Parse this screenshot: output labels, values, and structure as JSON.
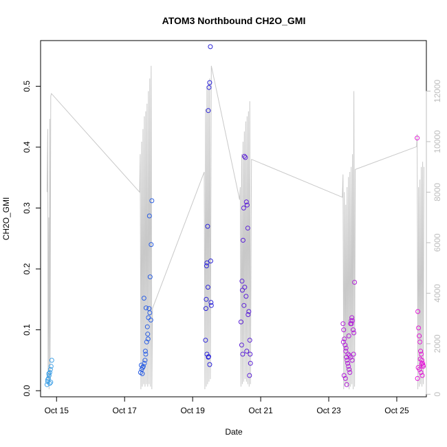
{
  "chart_data": {
    "type": "scatter",
    "title": "ATOM3 Northbound CH2O_GMI",
    "xlabel": "Date",
    "ylabel": "CH2O_GMI",
    "xlim": [
      14.53,
      25.87
    ],
    "ylim": [
      -0.01,
      0.575
    ],
    "y2lim": [
      -100,
      14000
    ],
    "x_ticks": [
      {
        "value": 15,
        "label": "Oct 15"
      },
      {
        "value": 17,
        "label": "Oct 17"
      },
      {
        "value": 19,
        "label": "Oct 19"
      },
      {
        "value": 21,
        "label": "Oct 21"
      },
      {
        "value": 23,
        "label": "Oct 23"
      },
      {
        "value": 25,
        "label": "Oct 25"
      }
    ],
    "y_ticks": [
      {
        "value": 0.0,
        "label": "0.0"
      },
      {
        "value": 0.1,
        "label": "0.1"
      },
      {
        "value": 0.2,
        "label": "0.2"
      },
      {
        "value": 0.3,
        "label": "0.3"
      },
      {
        "value": 0.4,
        "label": "0.4"
      },
      {
        "value": 0.5,
        "label": "0.5"
      }
    ],
    "y2_ticks": [
      {
        "value": 0,
        "label": "0"
      },
      {
        "value": 2000,
        "label": "2000"
      },
      {
        "value": 4000,
        "label": "4000"
      },
      {
        "value": 6000,
        "label": "6000"
      },
      {
        "value": 8000,
        "label": "8000"
      },
      {
        "value": 10000,
        "label": "10000"
      },
      {
        "value": 12000,
        "label": "12000"
      }
    ],
    "grid": false,
    "colors": {
      "altitude_line": "#c8c8c8",
      "day1": "#3fa0e6",
      "day2": "#2b5fe3",
      "day3": "#2a22d8",
      "day4": "#5b20d6",
      "day5": "#b21fd8",
      "day6": "#e21ad6"
    },
    "series": [
      {
        "color_key": "day1",
        "x": [
          14.72,
          14.74,
          14.76,
          14.78,
          14.8,
          14.82,
          14.84,
          14.86,
          14.74,
          14.77,
          14.8,
          14.83
        ],
        "y": [
          0.01,
          0.015,
          0.02,
          0.025,
          0.03,
          0.035,
          0.04,
          0.05,
          0.018,
          0.028,
          0.012,
          0.014
        ]
      },
      {
        "color_key": "day2",
        "x": [
          17.47,
          17.5,
          17.53,
          17.55,
          17.58,
          17.6,
          17.62,
          17.65,
          17.68,
          17.7,
          17.72,
          17.75,
          17.78,
          17.8,
          17.52,
          17.57,
          17.63,
          17.67,
          17.73,
          17.77,
          17.49,
          17.61,
          17.69,
          17.74
        ],
        "y": [
          0.03,
          0.035,
          0.038,
          0.04,
          0.045,
          0.05,
          0.06,
          0.08,
          0.093,
          0.12,
          0.135,
          0.187,
          0.24,
          0.312,
          0.028,
          0.152,
          0.136,
          0.105,
          0.287,
          0.116,
          0.042,
          0.065,
          0.085,
          0.128
        ]
      },
      {
        "color_key": "day3",
        "x": [
          19.38,
          19.4,
          19.42,
          19.44,
          19.46,
          19.48,
          19.5,
          19.52,
          19.54,
          19.42,
          19.46,
          19.5,
          19.39,
          19.45,
          19.53,
          19.41,
          19.47,
          19.55
        ],
        "y": [
          0.083,
          0.15,
          0.21,
          0.27,
          0.46,
          0.498,
          0.506,
          0.565,
          0.145,
          0.06,
          0.055,
          0.043,
          0.135,
          0.17,
          0.213,
          0.205,
          0.056,
          0.14
        ]
      },
      {
        "color_key": "day4",
        "x": [
          20.42,
          20.45,
          20.48,
          20.5,
          20.52,
          20.55,
          20.58,
          20.6,
          20.62,
          20.65,
          20.68,
          20.7,
          20.44,
          20.47,
          20.53,
          20.57,
          20.63,
          20.67,
          20.46,
          20.51,
          20.59,
          20.69
        ],
        "y": [
          0.113,
          0.18,
          0.247,
          0.3,
          0.385,
          0.383,
          0.31,
          0.305,
          0.267,
          0.13,
          0.083,
          0.045,
          0.075,
          0.06,
          0.17,
          0.155,
          0.125,
          0.025,
          0.165,
          0.14,
          0.065,
          0.06
        ]
      },
      {
        "color_key": "day5",
        "x": [
          23.42,
          23.44,
          23.46,
          23.48,
          23.5,
          23.52,
          23.54,
          23.56,
          23.58,
          23.6,
          23.62,
          23.64,
          23.66,
          23.68,
          23.7,
          23.72,
          23.74,
          23.76,
          23.45,
          23.49,
          23.53,
          23.57,
          23.61,
          23.65,
          23.69,
          23.73,
          23.43,
          23.51,
          23.59,
          23.67
        ],
        "y": [
          0.11,
          0.1,
          0.085,
          0.075,
          0.065,
          0.055,
          0.05,
          0.045,
          0.04,
          0.035,
          0.03,
          0.11,
          0.115,
          0.12,
          0.115,
          0.1,
          0.095,
          0.178,
          0.025,
          0.02,
          0.01,
          0.06,
          0.058,
          0.055,
          0.05,
          0.06,
          0.08,
          0.07,
          0.09,
          0.11
        ]
      },
      {
        "color_key": "day6",
        "x": [
          25.6,
          25.62,
          25.64,
          25.66,
          25.68,
          25.7,
          25.72,
          25.74,
          25.76,
          25.78,
          25.63,
          25.67,
          25.71,
          25.75,
          25.61,
          25.69,
          25.73,
          25.77
        ],
        "y": [
          0.415,
          0.13,
          0.103,
          0.09,
          0.08,
          0.065,
          0.06,
          0.05,
          0.045,
          0.04,
          0.038,
          0.035,
          0.03,
          0.025,
          0.02,
          0.052,
          0.044,
          0.042
        ]
      }
    ],
    "altitude": {
      "x": [
        14.72,
        14.74,
        14.75,
        14.77,
        14.78,
        14.8,
        14.81,
        14.83,
        14.85,
        17.44,
        17.46,
        17.48,
        17.5,
        17.52,
        17.54,
        17.56,
        17.58,
        17.6,
        17.62,
        17.64,
        17.66,
        17.68,
        17.7,
        17.72,
        17.74,
        17.76,
        17.78,
        17.8,
        17.82,
        19.34,
        19.36,
        19.38,
        19.4,
        19.42,
        19.44,
        19.46,
        19.48,
        19.5,
        19.52,
        19.55,
        20.38,
        20.4,
        20.42,
        20.44,
        20.46,
        20.48,
        20.5,
        20.52,
        20.54,
        20.56,
        20.58,
        20.6,
        20.62,
        20.64,
        20.66,
        20.68,
        20.7,
        20.73,
        23.4,
        23.42,
        23.44,
        23.46,
        23.48,
        23.5,
        23.52,
        23.54,
        23.56,
        23.58,
        23.6,
        23.62,
        23.64,
        23.66,
        23.68,
        23.7,
        23.72,
        23.74,
        23.76,
        23.78,
        25.58,
        25.6,
        25.62,
        25.64,
        25.66,
        25.68,
        25.7,
        25.72,
        25.74,
        25.76,
        25.78,
        25.8
      ],
      "y": [
        8000,
        10500,
        600,
        7000,
        200,
        10900,
        500,
        11800,
        11900,
        8000,
        9500,
        200,
        10000,
        300,
        10500,
        400,
        11000,
        300,
        11200,
        400,
        11500,
        300,
        12000,
        400,
        12500,
        300,
        13000,
        200,
        3400,
        8800,
        200,
        11300,
        300,
        12200,
        400,
        12300,
        500,
        12500,
        600,
        13000,
        7700,
        8200,
        300,
        9500,
        400,
        10000,
        500,
        10400,
        600,
        10800,
        500,
        11000,
        400,
        11200,
        300,
        11600,
        400,
        9300,
        7800,
        8700,
        200,
        8000,
        300,
        7500,
        400,
        8200,
        300,
        8600,
        200,
        8800,
        300,
        9000,
        400,
        9500,
        200,
        12000,
        300,
        8900,
        9800,
        10300,
        200,
        8200,
        300,
        8500,
        400,
        9000,
        300,
        9200,
        400,
        9000
      ]
    }
  }
}
